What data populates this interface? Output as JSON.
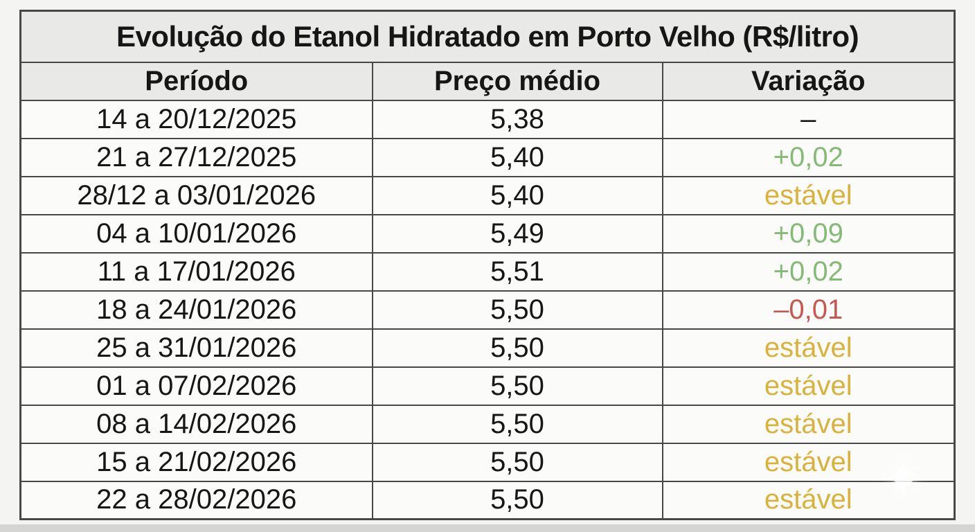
{
  "title": "Evolução do Etanol Hidratado em Porto Velho (R$/litro)",
  "chart_data": {
    "type": "table",
    "title": "Evolução do Etanol Hidratado em Porto Velho (R$/litro)",
    "unit": "R$/litro",
    "columns": [
      "Período",
      "Preço médio",
      "Variação"
    ],
    "rows": [
      {
        "period": "14 a 20/12/2025",
        "price": "5,38",
        "variation": "–",
        "trend": "none"
      },
      {
        "period": "21 a 27/12/2025",
        "price": "5,40",
        "variation": "+0,02",
        "trend": "up"
      },
      {
        "period": "28/12 a 03/01/2026",
        "price": "5,40",
        "variation": "estável",
        "trend": "stable"
      },
      {
        "period": "04 a 10/01/2026",
        "price": "5,49",
        "variation": "+0,09",
        "trend": "up"
      },
      {
        "period": "11 a 17/01/2026",
        "price": "5,51",
        "variation": "+0,02",
        "trend": "up"
      },
      {
        "period": "18 a 24/01/2026",
        "price": "5,50",
        "variation": "–0,01",
        "trend": "down"
      },
      {
        "period": "25 a 31/01/2026",
        "price": "5,50",
        "variation": "estável",
        "trend": "stable"
      },
      {
        "period": "01 a 07/02/2026",
        "price": "5,50",
        "variation": "estável",
        "trend": "stable"
      },
      {
        "period": "08 a 14/02/2026",
        "price": "5,50",
        "variation": "estável",
        "trend": "stable"
      },
      {
        "period": "15 a 21/02/2026",
        "price": "5,50",
        "variation": "estável",
        "trend": "stable"
      },
      {
        "period": "22 a 28/02/2026",
        "price": "5,50",
        "variation": "estável",
        "trend": "stable"
      }
    ]
  },
  "colors": {
    "up": "#85ba76",
    "down": "#c8574f",
    "stable": "#d8b23b",
    "border": "#484848",
    "header-bg": "#e9e9e7",
    "cell-bg": "#fbfbfa",
    "text": "#161616",
    "page-bg": "#f4f4f2",
    "bottom-strip": "#d5d5d3"
  },
  "watermark": {
    "glyph": "✦"
  }
}
